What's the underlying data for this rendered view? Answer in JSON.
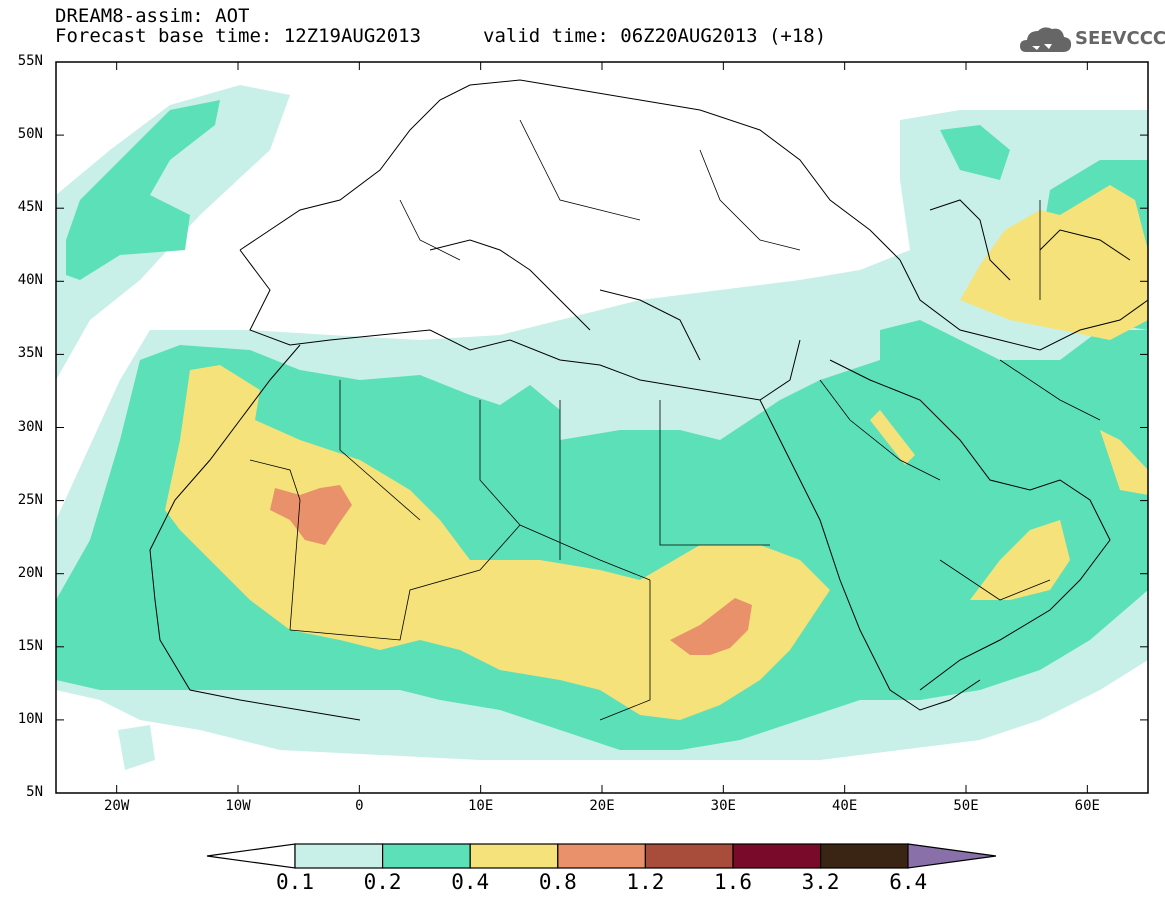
{
  "header": {
    "title": "DREAM8-assim: AOT",
    "base_time": "Forecast base time: 12Z19AUG2013",
    "valid_time": "valid time: 06Z20AUG2013 (+18)",
    "logo_text": "SEEVCCC",
    "logo_icon": "cloud-logo-icon"
  },
  "map": {
    "extent": {
      "lon": [
        -25,
        65
      ],
      "lat": [
        5,
        55
      ]
    },
    "lat_labels": [
      "55N",
      "50N",
      "45N",
      "40N",
      "35N",
      "30N",
      "25N",
      "20N",
      "15N",
      "10N",
      "5N"
    ],
    "lon_labels": [
      "20W",
      "10W",
      "0",
      "10E",
      "20E",
      "30E",
      "40E",
      "50E",
      "60E"
    ]
  },
  "colorbar": {
    "labels": [
      "0.1",
      "0.2",
      "0.4",
      "0.8",
      "1.2",
      "1.6",
      "3.2",
      "6.4"
    ],
    "colors": [
      "#c8f0e8",
      "#5ce0b8",
      "#f5e27a",
      "#e8916a",
      "#a84c3c",
      "#7a0a2a",
      "#3a2414",
      "#8a70a8"
    ],
    "below_color": "#ffffff",
    "above_color": "#8a70a8"
  }
}
